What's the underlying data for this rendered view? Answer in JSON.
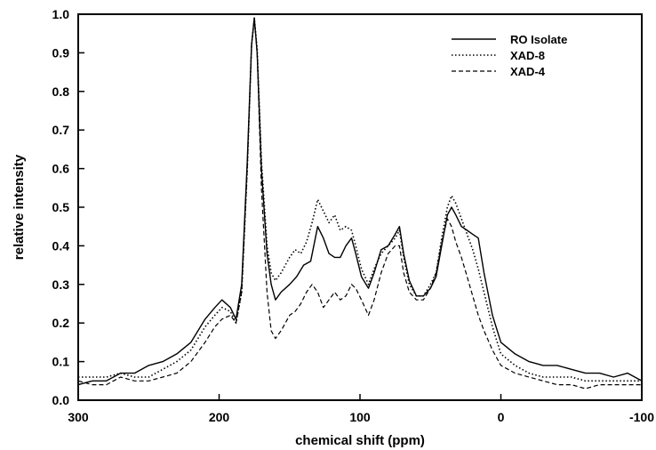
{
  "chart_data": {
    "type": "line",
    "title": "",
    "xlabel": "chemical shift (ppm)",
    "ylabel": "relative intensity",
    "xlim": [
      300,
      -100
    ],
    "ylim": [
      0.0,
      1.0
    ],
    "x_reversed": true,
    "grid": false,
    "legend_position": "top-right",
    "x_ticks": [
      "300",
      "200",
      "100",
      "0",
      "-100"
    ],
    "y_ticks": [
      "0.0",
      "0.1",
      "0.2",
      "0.3",
      "0.4",
      "0.5",
      "0.6",
      "0.7",
      "0.8",
      "0.9",
      "1.0"
    ],
    "series": [
      {
        "name": "RO Isolate",
        "style": "solid",
        "points": [
          [
            300,
            0.04
          ],
          [
            290,
            0.05
          ],
          [
            280,
            0.05
          ],
          [
            270,
            0.07
          ],
          [
            260,
            0.07
          ],
          [
            250,
            0.09
          ],
          [
            240,
            0.1
          ],
          [
            230,
            0.12
          ],
          [
            220,
            0.15
          ],
          [
            210,
            0.21
          ],
          [
            203,
            0.24
          ],
          [
            198,
            0.26
          ],
          [
            192,
            0.24
          ],
          [
            188,
            0.21
          ],
          [
            184,
            0.3
          ],
          [
            180,
            0.62
          ],
          [
            177,
            0.92
          ],
          [
            175,
            0.99
          ],
          [
            173,
            0.9
          ],
          [
            170,
            0.6
          ],
          [
            166,
            0.38
          ],
          [
            163,
            0.3
          ],
          [
            160,
            0.26
          ],
          [
            156,
            0.28
          ],
          [
            150,
            0.3
          ],
          [
            145,
            0.32
          ],
          [
            140,
            0.35
          ],
          [
            135,
            0.36
          ],
          [
            130,
            0.45
          ],
          [
            126,
            0.42
          ],
          [
            122,
            0.38
          ],
          [
            118,
            0.37
          ],
          [
            114,
            0.37
          ],
          [
            110,
            0.4
          ],
          [
            106,
            0.42
          ],
          [
            103,
            0.38
          ],
          [
            99,
            0.32
          ],
          [
            94,
            0.29
          ],
          [
            90,
            0.33
          ],
          [
            85,
            0.39
          ],
          [
            80,
            0.4
          ],
          [
            75,
            0.43
          ],
          [
            72,
            0.45
          ],
          [
            69,
            0.38
          ],
          [
            65,
            0.31
          ],
          [
            60,
            0.27
          ],
          [
            55,
            0.27
          ],
          [
            50,
            0.29
          ],
          [
            46,
            0.32
          ],
          [
            42,
            0.4
          ],
          [
            38,
            0.48
          ],
          [
            35,
            0.5
          ],
          [
            32,
            0.48
          ],
          [
            28,
            0.45
          ],
          [
            24,
            0.44
          ],
          [
            20,
            0.43
          ],
          [
            16,
            0.42
          ],
          [
            12,
            0.33
          ],
          [
            6,
            0.22
          ],
          [
            0,
            0.15
          ],
          [
            -10,
            0.12
          ],
          [
            -20,
            0.1
          ],
          [
            -30,
            0.09
          ],
          [
            -40,
            0.09
          ],
          [
            -50,
            0.08
          ],
          [
            -60,
            0.07
          ],
          [
            -70,
            0.07
          ],
          [
            -80,
            0.06
          ],
          [
            -90,
            0.07
          ],
          [
            -100,
            0.05
          ]
        ]
      },
      {
        "name": "XAD-8",
        "style": "dotted",
        "points": [
          [
            300,
            0.06
          ],
          [
            290,
            0.06
          ],
          [
            280,
            0.06
          ],
          [
            270,
            0.07
          ],
          [
            260,
            0.06
          ],
          [
            250,
            0.06
          ],
          [
            240,
            0.08
          ],
          [
            230,
            0.1
          ],
          [
            220,
            0.13
          ],
          [
            210,
            0.19
          ],
          [
            203,
            0.22
          ],
          [
            198,
            0.24
          ],
          [
            192,
            0.23
          ],
          [
            188,
            0.2
          ],
          [
            184,
            0.28
          ],
          [
            180,
            0.6
          ],
          [
            177,
            0.92
          ],
          [
            175,
            0.99
          ],
          [
            173,
            0.91
          ],
          [
            170,
            0.62
          ],
          [
            166,
            0.4
          ],
          [
            163,
            0.33
          ],
          [
            160,
            0.31
          ],
          [
            156,
            0.33
          ],
          [
            150,
            0.37
          ],
          [
            146,
            0.39
          ],
          [
            142,
            0.38
          ],
          [
            138,
            0.41
          ],
          [
            134,
            0.46
          ],
          [
            130,
            0.52
          ],
          [
            126,
            0.49
          ],
          [
            122,
            0.46
          ],
          [
            118,
            0.48
          ],
          [
            114,
            0.44
          ],
          [
            110,
            0.45
          ],
          [
            106,
            0.44
          ],
          [
            103,
            0.4
          ],
          [
            99,
            0.34
          ],
          [
            94,
            0.3
          ],
          [
            90,
            0.34
          ],
          [
            85,
            0.38
          ],
          [
            80,
            0.4
          ],
          [
            75,
            0.42
          ],
          [
            72,
            0.44
          ],
          [
            69,
            0.37
          ],
          [
            65,
            0.3
          ],
          [
            60,
            0.27
          ],
          [
            55,
            0.27
          ],
          [
            50,
            0.3
          ],
          [
            46,
            0.33
          ],
          [
            42,
            0.42
          ],
          [
            38,
            0.5
          ],
          [
            35,
            0.53
          ],
          [
            32,
            0.51
          ],
          [
            28,
            0.47
          ],
          [
            24,
            0.43
          ],
          [
            20,
            0.39
          ],
          [
            16,
            0.34
          ],
          [
            12,
            0.28
          ],
          [
            6,
            0.19
          ],
          [
            0,
            0.12
          ],
          [
            -10,
            0.09
          ],
          [
            -20,
            0.07
          ],
          [
            -30,
            0.06
          ],
          [
            -40,
            0.06
          ],
          [
            -50,
            0.06
          ],
          [
            -60,
            0.05
          ],
          [
            -70,
            0.05
          ],
          [
            -80,
            0.05
          ],
          [
            -90,
            0.05
          ],
          [
            -100,
            0.05
          ]
        ]
      },
      {
        "name": "XAD-4",
        "style": "dashed",
        "points": [
          [
            300,
            0.05
          ],
          [
            290,
            0.04
          ],
          [
            280,
            0.04
          ],
          [
            270,
            0.06
          ],
          [
            260,
            0.05
          ],
          [
            250,
            0.05
          ],
          [
            240,
            0.06
          ],
          [
            230,
            0.07
          ],
          [
            220,
            0.1
          ],
          [
            210,
            0.15
          ],
          [
            203,
            0.19
          ],
          [
            198,
            0.21
          ],
          [
            192,
            0.22
          ],
          [
            188,
            0.2
          ],
          [
            184,
            0.28
          ],
          [
            180,
            0.6
          ],
          [
            177,
            0.92
          ],
          [
            175,
            0.99
          ],
          [
            173,
            0.9
          ],
          [
            170,
            0.55
          ],
          [
            166,
            0.28
          ],
          [
            163,
            0.18
          ],
          [
            160,
            0.16
          ],
          [
            156,
            0.18
          ],
          [
            150,
            0.22
          ],
          [
            146,
            0.23
          ],
          [
            142,
            0.25
          ],
          [
            138,
            0.28
          ],
          [
            134,
            0.3
          ],
          [
            130,
            0.28
          ],
          [
            126,
            0.24
          ],
          [
            122,
            0.26
          ],
          [
            118,
            0.28
          ],
          [
            114,
            0.26
          ],
          [
            110,
            0.27
          ],
          [
            106,
            0.3
          ],
          [
            103,
            0.29
          ],
          [
            99,
            0.26
          ],
          [
            94,
            0.22
          ],
          [
            90,
            0.26
          ],
          [
            85,
            0.33
          ],
          [
            80,
            0.38
          ],
          [
            75,
            0.4
          ],
          [
            72,
            0.4
          ],
          [
            69,
            0.33
          ],
          [
            65,
            0.28
          ],
          [
            60,
            0.26
          ],
          [
            55,
            0.26
          ],
          [
            50,
            0.29
          ],
          [
            46,
            0.33
          ],
          [
            42,
            0.41
          ],
          [
            38,
            0.47
          ],
          [
            35,
            0.45
          ],
          [
            32,
            0.41
          ],
          [
            28,
            0.37
          ],
          [
            24,
            0.32
          ],
          [
            20,
            0.27
          ],
          [
            16,
            0.22
          ],
          [
            12,
            0.18
          ],
          [
            6,
            0.13
          ],
          [
            0,
            0.09
          ],
          [
            -10,
            0.07
          ],
          [
            -20,
            0.06
          ],
          [
            -30,
            0.05
          ],
          [
            -40,
            0.04
          ],
          [
            -50,
            0.04
          ],
          [
            -60,
            0.03
          ],
          [
            -70,
            0.04
          ],
          [
            -80,
            0.04
          ],
          [
            -90,
            0.04
          ],
          [
            -100,
            0.04
          ]
        ]
      }
    ]
  }
}
